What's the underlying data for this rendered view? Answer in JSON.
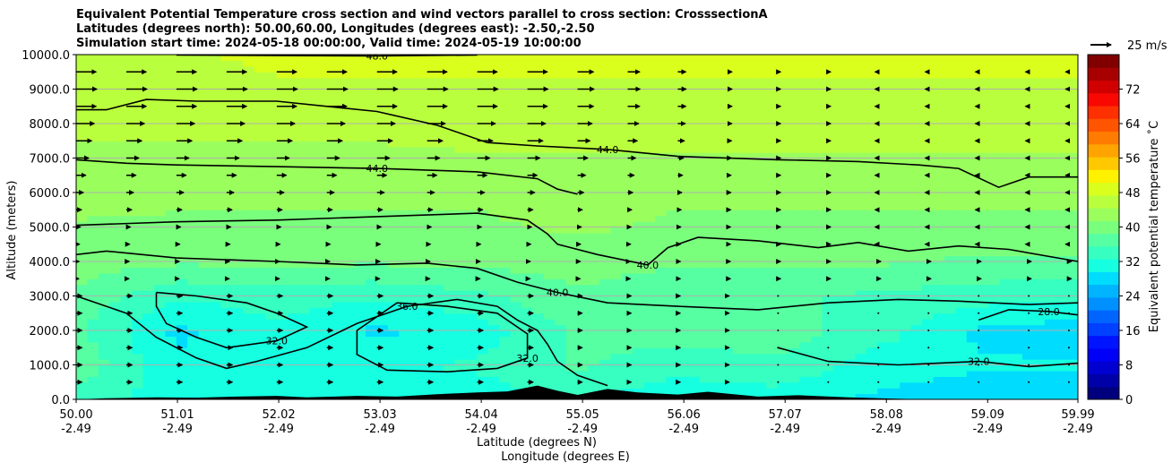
{
  "chart_data": {
    "type": "heatmap",
    "title_lines": [
      "Equivalent Potential Temperature cross section and wind vectors parallel to cross section: CrosssectionA",
      "Latitudes (degrees north): 50.00,60.00, Longitudes (degrees east): -2.50,-2.50",
      "Simulation start time: 2024-05-18 00:00:00, Valid time: 2024-05-19 10:00:00"
    ],
    "xlabel": "Latitude (degrees N)",
    "xlabel2": "Longitude (degrees E)",
    "ylabel": "Altitude (meters)",
    "xlim": [
      50.0,
      59.99
    ],
    "ylim": [
      0,
      10000
    ],
    "x_ticks": [
      {
        "lat": "50.00",
        "lon": "-2.49",
        "value": 50.0
      },
      {
        "lat": "51.01",
        "lon": "-2.49",
        "value": 51.01
      },
      {
        "lat": "52.02",
        "lon": "-2.49",
        "value": 52.02
      },
      {
        "lat": "53.03",
        "lon": "-2.49",
        "value": 53.03
      },
      {
        "lat": "54.04",
        "lon": "-2.49",
        "value": 54.04
      },
      {
        "lat": "55.05",
        "lon": "-2.49",
        "value": 55.05
      },
      {
        "lat": "56.06",
        "lon": "-2.49",
        "value": 56.06
      },
      {
        "lat": "57.07",
        "lon": "-2.49",
        "value": 57.07
      },
      {
        "lat": "58.08",
        "lon": "-2.49",
        "value": 58.08
      },
      {
        "lat": "59.09",
        "lon": "-2.49",
        "value": 59.09
      },
      {
        "lat": "59.99",
        "lon": "-2.49",
        "value": 59.99
      }
    ],
    "y_ticks": [
      {
        "label": "0.0",
        "value": 0
      },
      {
        "label": "1000.0",
        "value": 1000
      },
      {
        "label": "2000.0",
        "value": 2000
      },
      {
        "label": "3000.0",
        "value": 3000
      },
      {
        "label": "4000.0",
        "value": 4000
      },
      {
        "label": "5000.0",
        "value": 5000
      },
      {
        "label": "6000.0",
        "value": 6000
      },
      {
        "label": "7000.0",
        "value": 7000
      },
      {
        "label": "8000.0",
        "value": 8000
      },
      {
        "label": "9000.0",
        "value": 9000
      },
      {
        "label": "10000.0",
        "value": 10000
      }
    ],
    "grid": "horizontal",
    "colorbar": {
      "label": "Equivalent potential temperature ˚C",
      "min": 0,
      "max": 80,
      "ticks": [
        {
          "label": "0",
          "value": 0
        },
        {
          "label": "8",
          "value": 8
        },
        {
          "label": "16",
          "value": 16
        },
        {
          "label": "24",
          "value": 24
        },
        {
          "label": "32",
          "value": 32
        },
        {
          "label": "40",
          "value": 40
        },
        {
          "label": "48",
          "value": 48
        },
        {
          "label": "56",
          "value": 56
        },
        {
          "label": "64",
          "value": 64
        },
        {
          "label": "72",
          "value": 72
        }
      ],
      "colors": [
        "#00007f",
        "#0000a8",
        "#0000d0",
        "#0000f8",
        "#0014ff",
        "#0040ff",
        "#0064ff",
        "#0090ff",
        "#00b4ff",
        "#00dcfe",
        "#16ffe1",
        "#36ffc1",
        "#56ffa1",
        "#7aff7d",
        "#9aff5d",
        "#baff3d",
        "#daff1d",
        "#fff200",
        "#ffc800",
        "#ffa400",
        "#ff7c00",
        "#ff5400",
        "#ff3000",
        "#f80800",
        "#d00000",
        "#a80000",
        "#800000"
      ]
    },
    "wind_key": {
      "label": "25 m/s",
      "speed": 25
    },
    "theta_e_field": {
      "description_units": "deg C",
      "x_lat": [
        50.0,
        51.0,
        52.0,
        53.0,
        54.0,
        55.0,
        56.0,
        57.0,
        58.0,
        59.0,
        59.99
      ],
      "levels_m": [
        0,
        1000,
        2000,
        3000,
        4000,
        5000,
        6000,
        7000,
        8000,
        9000,
        10000
      ],
      "values": [
        [
          33,
          32,
          31,
          32,
          31,
          33,
          30,
          31,
          29,
          28,
          28
        ],
        [
          38,
          30,
          31,
          32,
          33,
          36,
          34,
          35,
          31,
          30,
          30
        ],
        [
          36,
          29,
          32,
          29,
          31,
          36,
          37,
          37,
          34,
          29,
          28
        ],
        [
          38,
          33,
          34,
          33,
          35,
          38,
          36,
          36,
          35,
          34,
          33
        ],
        [
          40,
          39,
          39,
          39,
          39,
          40,
          39,
          39,
          39,
          38,
          38
        ],
        [
          41,
          41,
          41,
          41,
          41,
          42,
          41,
          41,
          41,
          41,
          41
        ],
        [
          43,
          42,
          42,
          42,
          42,
          43,
          42,
          42,
          42,
          42,
          42
        ],
        [
          44,
          44,
          44,
          44,
          44,
          44,
          44,
          44,
          44,
          44,
          44
        ],
        [
          45,
          45,
          45,
          45,
          46,
          46,
          46,
          46,
          46,
          46,
          46
        ],
        [
          46,
          46,
          47,
          47,
          47,
          47,
          47,
          47,
          47,
          47,
          47
        ],
        [
          47,
          47,
          48,
          48,
          48,
          48,
          48,
          48,
          48,
          48,
          48
        ]
      ]
    },
    "contours": [
      {
        "level": "48.0",
        "points": [
          [
            51.0,
            9990
          ],
          [
            53.0,
            9960
          ],
          [
            54.0,
            9990
          ]
        ]
      },
      {
        "level": "44.0",
        "points": [
          [
            50.0,
            8400
          ],
          [
            50.3,
            8400
          ],
          [
            50.7,
            8700
          ],
          [
            51.2,
            8650
          ],
          [
            52.0,
            8650
          ],
          [
            53.0,
            8350
          ],
          [
            53.6,
            7950
          ],
          [
            54.1,
            7450
          ],
          [
            54.6,
            7350
          ],
          [
            55.3,
            7250
          ],
          [
            56.0,
            7050
          ],
          [
            57.0,
            6950
          ],
          [
            57.8,
            6900
          ],
          [
            58.4,
            6800
          ],
          [
            58.8,
            6700
          ],
          [
            59.2,
            6150
          ],
          [
            59.5,
            6450
          ],
          [
            59.99,
            6450
          ]
        ]
      },
      {
        "level": "44.0",
        "points": [
          [
            50.0,
            6950
          ],
          [
            50.5,
            6850
          ],
          [
            51.0,
            6800
          ],
          [
            52.0,
            6750
          ],
          [
            53.0,
            6700
          ],
          [
            54.0,
            6600
          ],
          [
            54.6,
            6400
          ],
          [
            54.8,
            6100
          ],
          [
            55.0,
            5950
          ]
        ]
      },
      {
        "level": "40.0",
        "points": [
          [
            50.0,
            5050
          ],
          [
            51.0,
            5150
          ],
          [
            52.0,
            5200
          ],
          [
            53.0,
            5300
          ],
          [
            54.0,
            5400
          ],
          [
            54.5,
            5200
          ],
          [
            54.7,
            4800
          ],
          [
            54.8,
            4500
          ],
          [
            55.2,
            4200
          ],
          [
            55.7,
            3900
          ],
          [
            55.9,
            4400
          ],
          [
            56.2,
            4700
          ],
          [
            56.8,
            4600
          ],
          [
            57.4,
            4400
          ],
          [
            57.8,
            4550
          ],
          [
            58.3,
            4300
          ],
          [
            58.8,
            4450
          ],
          [
            59.3,
            4350
          ],
          [
            59.99,
            4000
          ]
        ]
      },
      {
        "level": "40.0",
        "points": [
          [
            50.0,
            4200
          ],
          [
            50.3,
            4300
          ],
          [
            51.0,
            4100
          ],
          [
            52.0,
            4000
          ],
          [
            52.8,
            3900
          ],
          [
            53.5,
            3950
          ],
          [
            54.0,
            3800
          ],
          [
            54.4,
            3400
          ],
          [
            54.8,
            3100
          ],
          [
            55.3,
            2800
          ],
          [
            56.0,
            2700
          ],
          [
            56.8,
            2600
          ],
          [
            57.5,
            2800
          ],
          [
            58.2,
            2900
          ],
          [
            58.8,
            2850
          ],
          [
            59.5,
            2750
          ],
          [
            59.99,
            2800
          ]
        ]
      },
      {
        "level": "36.0",
        "points": [
          [
            50.0,
            3000
          ],
          [
            50.5,
            2500
          ],
          [
            50.8,
            1800
          ],
          [
            51.2,
            1200
          ],
          [
            51.5,
            900
          ],
          [
            51.8,
            1100
          ],
          [
            52.3,
            1500
          ],
          [
            52.8,
            2200
          ],
          [
            53.3,
            2700
          ],
          [
            53.8,
            2900
          ],
          [
            54.2,
            2700
          ],
          [
            54.4,
            2300
          ],
          [
            54.6,
            2000
          ],
          [
            54.7,
            1600
          ],
          [
            54.8,
            1100
          ],
          [
            55.0,
            700
          ],
          [
            55.3,
            400
          ]
        ]
      },
      {
        "level": "32.0",
        "points": [
          [
            50.8,
            3100
          ],
          [
            51.2,
            3000
          ],
          [
            51.7,
            2800
          ],
          [
            52.0,
            2500
          ],
          [
            52.3,
            2100
          ],
          [
            52.0,
            1700
          ],
          [
            51.5,
            1500
          ],
          [
            51.2,
            1800
          ],
          [
            50.9,
            2200
          ],
          [
            50.8,
            2700
          ],
          [
            50.8,
            3100
          ]
        ]
      },
      {
        "level": "32.0",
        "points": [
          [
            52.8,
            2000
          ],
          [
            53.2,
            2800
          ],
          [
            53.7,
            2700
          ],
          [
            54.2,
            2500
          ],
          [
            54.5,
            1900
          ],
          [
            54.5,
            1200
          ],
          [
            54.2,
            900
          ],
          [
            53.7,
            800
          ],
          [
            53.1,
            850
          ],
          [
            52.8,
            1300
          ],
          [
            52.8,
            2000
          ]
        ]
      },
      {
        "level": "32.0",
        "points": [
          [
            57.0,
            1500
          ],
          [
            57.5,
            1100
          ],
          [
            58.2,
            1000
          ],
          [
            59.0,
            1100
          ],
          [
            59.5,
            950
          ],
          [
            59.99,
            1050
          ]
        ]
      },
      {
        "level": "28.0",
        "points": [
          [
            59.0,
            2300
          ],
          [
            59.3,
            2600
          ],
          [
            59.7,
            2550
          ],
          [
            59.99,
            2450
          ]
        ]
      }
    ],
    "wind_vectors": {
      "x_lat": [
        50.0,
        50.5,
        51.0,
        51.5,
        52.0,
        52.5,
        53.0,
        53.5,
        54.0,
        54.5,
        55.0,
        55.5,
        56.0,
        56.5,
        57.0,
        57.5,
        58.0,
        58.5,
        59.0,
        59.5,
        59.9
      ],
      "levels_m": [
        500,
        1000,
        1500,
        2000,
        2500,
        3000,
        3500,
        4000,
        4500,
        5000,
        5500,
        6000,
        6500,
        7000,
        7500,
        8000,
        8500,
        9000,
        9500
      ],
      "note": "u component in m/s (positive = towards higher latitude)"
    },
    "terrain_m": [
      [
        50.0,
        0
      ],
      [
        50.3,
        30
      ],
      [
        50.8,
        60
      ],
      [
        51.2,
        50
      ],
      [
        51.6,
        80
      ],
      [
        52.0,
        100
      ],
      [
        52.3,
        60
      ],
      [
        52.8,
        100
      ],
      [
        53.2,
        80
      ],
      [
        53.6,
        150
      ],
      [
        54.0,
        200
      ],
      [
        54.3,
        230
      ],
      [
        54.6,
        400
      ],
      [
        54.8,
        250
      ],
      [
        55.0,
        130
      ],
      [
        55.3,
        300
      ],
      [
        55.6,
        200
      ],
      [
        56.0,
        140
      ],
      [
        56.3,
        220
      ],
      [
        56.8,
        80
      ],
      [
        57.2,
        120
      ],
      [
        57.7,
        60
      ],
      [
        58.0,
        30
      ],
      [
        58.5,
        0
      ],
      [
        59.99,
        0
      ]
    ]
  }
}
